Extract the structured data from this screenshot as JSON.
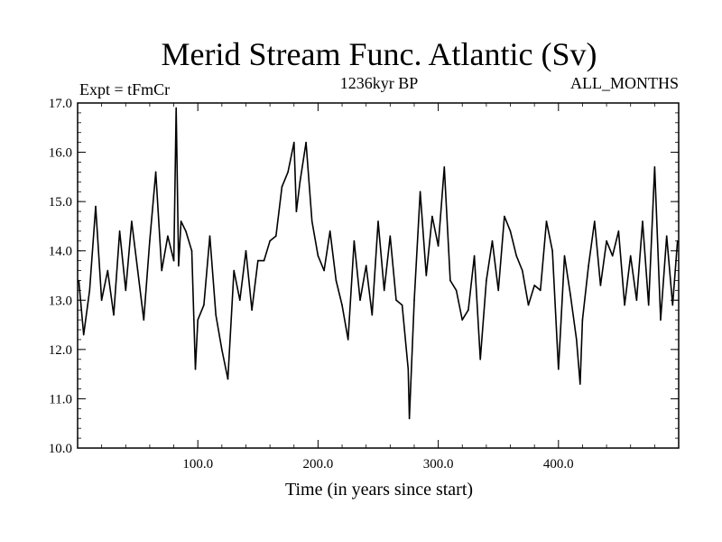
{
  "chart_data": {
    "type": "line",
    "title": "Merid Stream Func. Atlantic (Sv)",
    "subtitle_left": "Expt = tFmCr",
    "subtitle_center": "1236kyr BP",
    "subtitle_right": "ALL_MONTHS",
    "xlabel": "Time (in years since start)",
    "ylabel": "",
    "xlim": [
      0,
      500
    ],
    "ylim": [
      10.0,
      17.0
    ],
    "x_ticks": [
      100,
      200,
      300,
      400
    ],
    "x_tick_labels": [
      "100.0",
      "200.0",
      "300.0",
      "400.0"
    ],
    "y_ticks": [
      10,
      11,
      12,
      13,
      14,
      15,
      16,
      17
    ],
    "y_tick_labels": [
      "10.0",
      "11.0",
      "12.0",
      "13.0",
      "14.0",
      "15.0",
      "16.0",
      "17.0"
    ],
    "series": [
      {
        "name": "Merid Stream Func. Atlantic",
        "color": "#000000",
        "x": [
          1,
          5,
          10,
          15,
          20,
          25,
          30,
          35,
          40,
          45,
          50,
          55,
          60,
          65,
          70,
          75,
          80,
          82,
          84,
          86,
          90,
          95,
          98,
          100,
          105,
          110,
          115,
          120,
          125,
          130,
          135,
          140,
          145,
          150,
          155,
          160,
          165,
          170,
          175,
          180,
          182,
          185,
          190,
          195,
          200,
          205,
          210,
          215,
          220,
          225,
          230,
          235,
          240,
          245,
          250,
          255,
          260,
          265,
          270,
          275,
          276,
          280,
          285,
          290,
          295,
          300,
          305,
          310,
          315,
          320,
          325,
          330,
          335,
          340,
          345,
          350,
          355,
          360,
          365,
          370,
          375,
          380,
          385,
          390,
          395,
          400,
          405,
          410,
          415,
          418,
          420,
          425,
          430,
          435,
          440,
          445,
          450,
          455,
          460,
          465,
          470,
          475,
          480,
          485,
          490,
          495,
          499
        ],
        "values": [
          13.4,
          12.3,
          13.2,
          14.9,
          13.0,
          13.6,
          12.7,
          14.4,
          13.2,
          14.6,
          13.6,
          12.6,
          14.2,
          15.6,
          13.6,
          14.3,
          13.8,
          16.9,
          13.7,
          14.6,
          14.4,
          14.0,
          11.6,
          12.6,
          12.9,
          14.3,
          12.7,
          12.0,
          11.4,
          13.6,
          13.0,
          14.0,
          12.8,
          13.8,
          13.8,
          14.2,
          14.3,
          15.3,
          15.6,
          16.2,
          14.8,
          15.4,
          16.2,
          14.6,
          13.9,
          13.6,
          14.4,
          13.4,
          12.9,
          12.2,
          14.2,
          13.0,
          13.7,
          12.7,
          14.6,
          13.2,
          14.3,
          13.0,
          12.9,
          11.6,
          10.6,
          13.0,
          15.2,
          13.5,
          14.7,
          14.1,
          15.7,
          13.4,
          13.2,
          12.6,
          12.8,
          13.9,
          11.8,
          13.4,
          14.2,
          13.2,
          14.7,
          14.4,
          13.9,
          13.6,
          12.9,
          13.3,
          13.2,
          14.6,
          14.0,
          11.6,
          13.9,
          13.1,
          12.2,
          11.3,
          12.6,
          13.7,
          14.6,
          13.3,
          14.2,
          13.9,
          14.4,
          12.9,
          13.9,
          13.0,
          14.6,
          12.9,
          15.7,
          12.6,
          14.3,
          12.9,
          14.2
        ]
      }
    ]
  }
}
